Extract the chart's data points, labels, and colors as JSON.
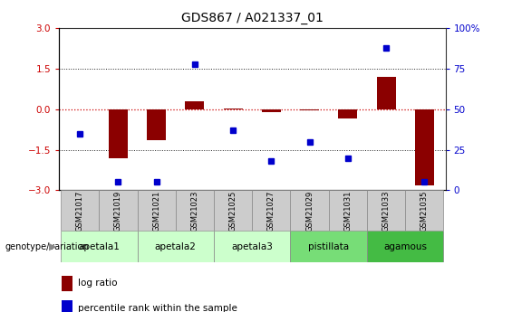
{
  "title": "GDS867 / A021337_01",
  "samples": [
    "GSM21017",
    "GSM21019",
    "GSM21021",
    "GSM21023",
    "GSM21025",
    "GSM21027",
    "GSM21029",
    "GSM21031",
    "GSM21033",
    "GSM21035"
  ],
  "log_ratio": [
    0.0,
    -1.82,
    -1.15,
    0.3,
    0.02,
    -0.12,
    -0.05,
    -0.35,
    1.2,
    -2.82
  ],
  "percentile": [
    35,
    5,
    5,
    78,
    37,
    18,
    30,
    20,
    88,
    5
  ],
  "group_spans": [
    {
      "label": "apetala1",
      "start": 0,
      "end": 1,
      "color": "#ccffcc"
    },
    {
      "label": "apetala2",
      "start": 2,
      "end": 3,
      "color": "#ccffcc"
    },
    {
      "label": "apetala3",
      "start": 4,
      "end": 5,
      "color": "#ccffcc"
    },
    {
      "label": "pistillata",
      "start": 6,
      "end": 7,
      "color": "#77dd77"
    },
    {
      "label": "agamous",
      "start": 8,
      "end": 9,
      "color": "#44bb44"
    }
  ],
  "ylim": [
    -3,
    3
  ],
  "y2lim": [
    0,
    100
  ],
  "yticks": [
    -3,
    -1.5,
    0,
    1.5,
    3
  ],
  "y2ticks": [
    0,
    25,
    50,
    75,
    100
  ],
  "bar_color": "#8B0000",
  "dot_color": "#0000CC",
  "hline_color_0": "#cc0000",
  "hline_color_other": "#222222",
  "sample_box_color": "#cccccc",
  "legend_bar_label": "log ratio",
  "legend_dot_label": "percentile rank within the sample",
  "genotype_label": "genotype/variation"
}
